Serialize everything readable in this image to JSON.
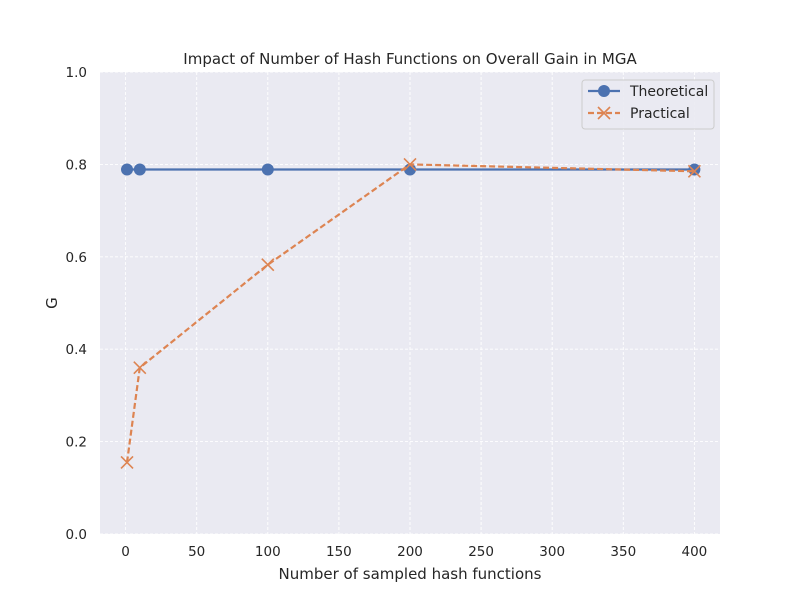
{
  "chart_data": {
    "type": "line",
    "title": "Impact of Number of Hash Functions on Overall Gain in MGA",
    "xlabel": "Number of sampled hash functions",
    "ylabel": "G",
    "xlim": [
      -18,
      418
    ],
    "ylim": [
      0.0,
      1.0
    ],
    "xticks": [
      0,
      50,
      100,
      150,
      200,
      250,
      300,
      350,
      400
    ],
    "yticks": [
      0.0,
      0.2,
      0.4,
      0.6,
      0.8,
      1.0
    ],
    "xtick_labels": [
      "0",
      "50",
      "100",
      "150",
      "200",
      "250",
      "300",
      "350",
      "400"
    ],
    "ytick_labels": [
      "0.0",
      "0.2",
      "0.4",
      "0.6",
      "0.8",
      "1.0"
    ],
    "grid": true,
    "legend_position": "top-right",
    "series": [
      {
        "name": "Theoretical",
        "x": [
          1,
          10,
          100,
          200,
          400
        ],
        "y": [
          0.789,
          0.789,
          0.789,
          0.789,
          0.789
        ],
        "color": "#4c72b0",
        "marker": "circle",
        "line_style": "solid"
      },
      {
        "name": "Practical",
        "x": [
          1,
          10,
          100,
          200,
          400
        ],
        "y": [
          0.155,
          0.36,
          0.583,
          0.8,
          0.785
        ],
        "color": "#dd8452",
        "marker": "x",
        "line_style": "dashed"
      }
    ]
  }
}
